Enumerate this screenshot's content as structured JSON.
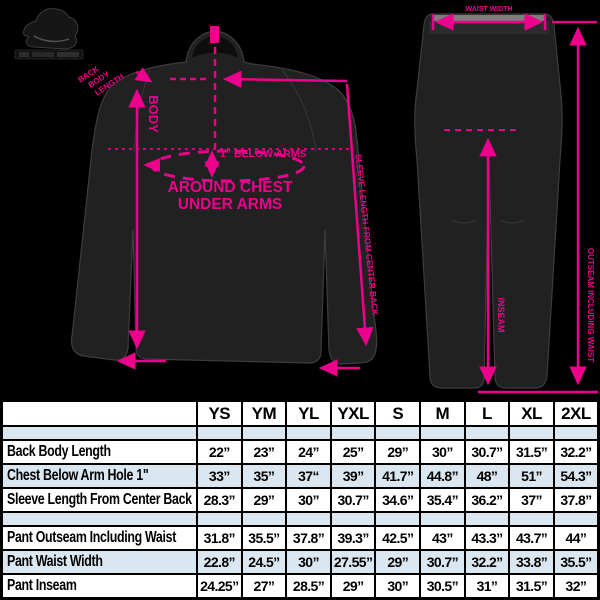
{
  "colors": {
    "accent": "#EC008C",
    "table_stripe": "#DBE7F0",
    "background": "#000000",
    "garment": "#212121"
  },
  "diagram": {
    "jacket": {
      "back_body_label_line1": "BACK",
      "back_body_label_line2": "BODY",
      "back_body_label_line3": "LENGTH",
      "body_label": "BODY",
      "below_arms_label": "1” BELOW ARMS",
      "around_chest_line1": "AROUND CHEST",
      "around_chest_line2": "UNDER ARMS",
      "sleeve_label": "SLEEVE LENGTH FROM CENTER BACK"
    },
    "pants": {
      "waist_label": "WAIST WIDTH",
      "outseam_label": "OUTSEAM INCLUDING WAIST",
      "inseam_label": "INSEAM"
    }
  },
  "chart_data": {
    "type": "table",
    "columns": [
      "YS",
      "YM",
      "YL",
      "YXL",
      "S",
      "M",
      "L",
      "XL",
      "2XL"
    ],
    "rows": [
      {
        "label": "Back Body Length",
        "values": [
          "22”",
          "23”",
          "24”",
          "25”",
          "29”",
          "30”",
          "30.7”",
          "31.5”",
          "32.2”"
        ]
      },
      {
        "label": "Chest Below Arm Hole 1\"",
        "values": [
          "33”",
          "35”",
          "37“",
          "39”",
          "41.7”",
          "44.8”",
          "48”",
          "51”",
          "54.3”"
        ]
      },
      {
        "label": "Sleeve Length From Center Back",
        "values": [
          "28.3”",
          "29”",
          "30”",
          "30.7”",
          "34.6”",
          "35.4”",
          "36.2”",
          "37”",
          "37.8”"
        ]
      },
      {
        "label": "Pant Outseam Including Waist",
        "values": [
          "31.8”",
          "35.5”",
          "37.8”",
          "39.3”",
          "42.5”",
          "43”",
          "43.3”",
          "43.7”",
          "44”"
        ]
      },
      {
        "label": "Pant Waist Width",
        "values": [
          "22.8”",
          "24.5”",
          "30”",
          "27.55”",
          "29”",
          "30.7”",
          "32.2”",
          "33.8”",
          "35.5”"
        ]
      },
      {
        "label": "Pant Inseam",
        "values": [
          "24.25”",
          "27”",
          "28.5”",
          "29”",
          "30”",
          "30.5”",
          "31”",
          "31.5”",
          "32”"
        ]
      }
    ],
    "row_groups": [
      [
        0,
        1,
        2
      ],
      [
        3,
        4,
        5
      ]
    ]
  }
}
